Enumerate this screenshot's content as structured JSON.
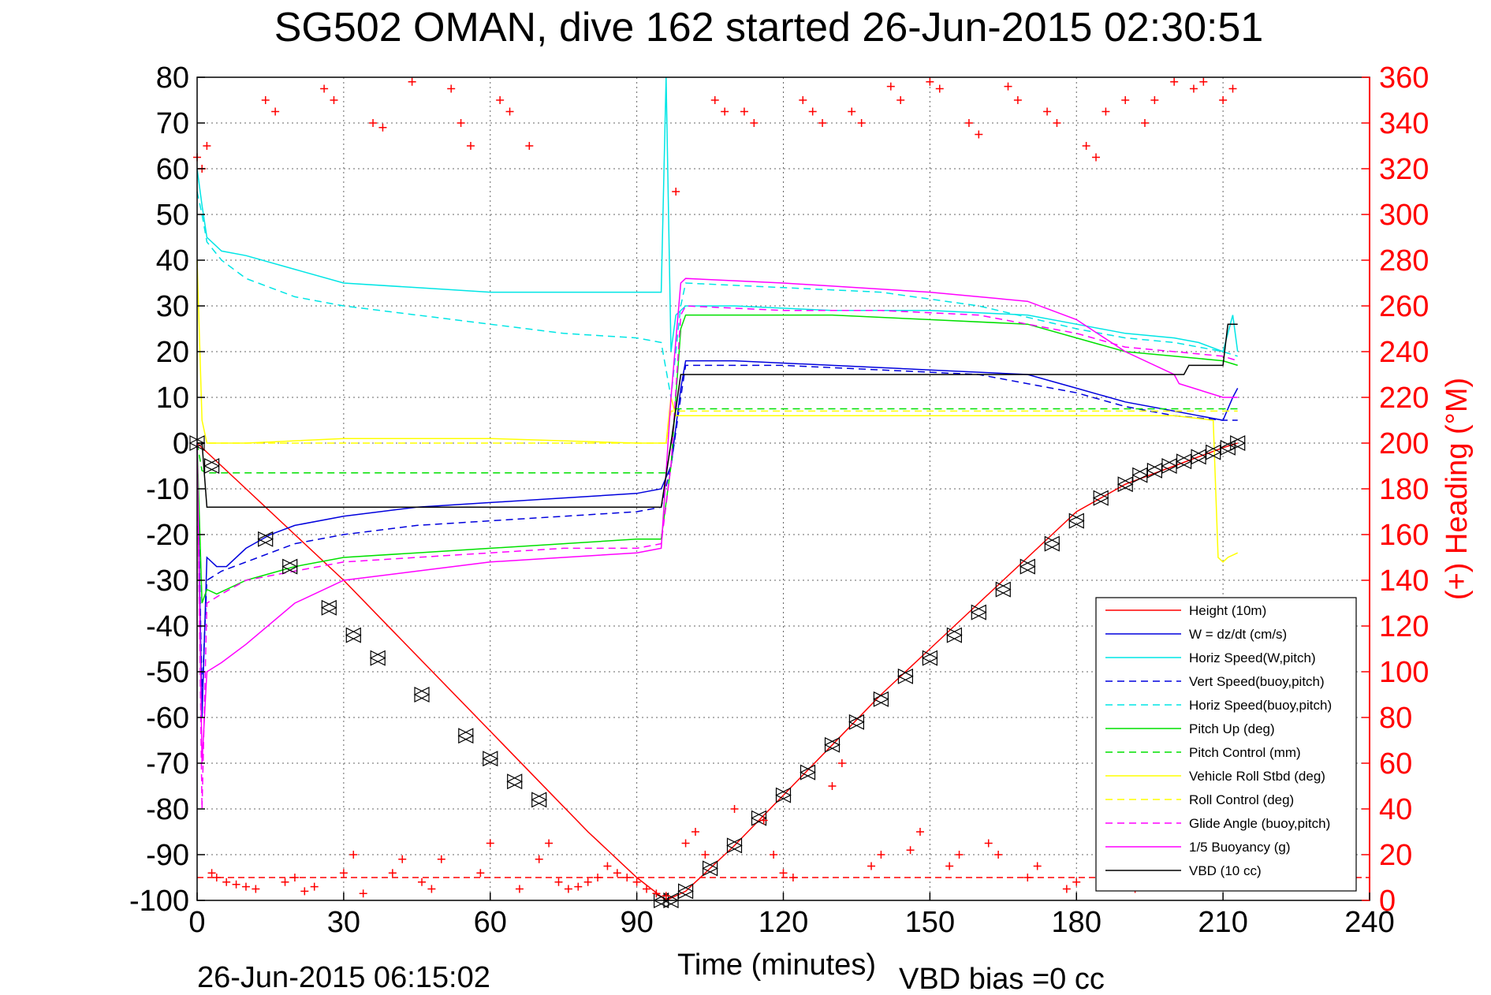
{
  "chart_data": {
    "type": "line",
    "title": "SG502 OMAN, dive 162 started 26-Jun-2015 02:30:51",
    "xlabel": "Time (minutes)",
    "ylabel": "",
    "y2label": "(+) Heading (°M)",
    "footer_left": "26-Jun-2015 06:15:02",
    "footer_right": "VBD bias =0 cc",
    "xlim": [
      0,
      240
    ],
    "ylim": [
      -100,
      80
    ],
    "y2lim": [
      0,
      360
    ],
    "xticks": [
      0,
      30,
      60,
      90,
      120,
      150,
      180,
      210,
      240
    ],
    "yticks": [
      80,
      70,
      60,
      50,
      40,
      30,
      20,
      10,
      0,
      -10,
      -20,
      -30,
      -40,
      -50,
      -60,
      -70,
      -80,
      -90,
      -100
    ],
    "y2ticks": [
      360,
      340,
      320,
      300,
      280,
      260,
      240,
      220,
      200,
      180,
      160,
      140,
      120,
      100,
      80,
      60,
      40,
      20,
      0
    ],
    "grid": true,
    "legend_position": "bottom-right",
    "series": [
      {
        "name": "Height (10m)",
        "color": "#ff0000",
        "dash": "solid",
        "x": [
          0,
          10,
          20,
          30,
          40,
          50,
          60,
          70,
          80,
          90,
          96,
          100,
          110,
          120,
          130,
          140,
          150,
          160,
          170,
          180,
          190,
          200,
          210,
          213
        ],
        "y": [
          0,
          -10,
          -20,
          -30,
          -41,
          -52,
          -63,
          -74,
          -85,
          -95,
          -100,
          -98,
          -88,
          -77,
          -66,
          -55,
          -45,
          -35,
          -25,
          -15,
          -9,
          -5,
          -1,
          0
        ]
      },
      {
        "name": "W = dz/dt (cm/s)",
        "color": "#0000dd",
        "dash": "solid",
        "x": [
          0,
          1,
          2,
          4,
          6,
          10,
          15,
          20,
          30,
          45,
          60,
          75,
          90,
          95,
          97,
          99,
          100,
          110,
          130,
          150,
          170,
          180,
          190,
          200,
          205,
          210,
          212,
          213
        ],
        "y": [
          0,
          -60,
          -25,
          -27,
          -27,
          -23,
          -20,
          -18,
          -16,
          -14,
          -13,
          -12,
          -11,
          -10,
          -5,
          12,
          18,
          18,
          17,
          16,
          15,
          12,
          9,
          7,
          6,
          5,
          10,
          12
        ]
      },
      {
        "name": "Horiz Speed(W,pitch)",
        "color": "#00e5e5",
        "dash": "solid",
        "x": [
          0,
          1,
          2,
          5,
          10,
          20,
          30,
          45,
          60,
          75,
          90,
          95,
          96,
          97,
          98,
          100,
          110,
          130,
          150,
          170,
          180,
          190,
          200,
          205,
          210,
          212,
          213
        ],
        "y": [
          60,
          52,
          45,
          42,
          41,
          38,
          35,
          34,
          33,
          33,
          33,
          33,
          80,
          20,
          28,
          30,
          30,
          29,
          29,
          28,
          26,
          24,
          23,
          22,
          20,
          28,
          20
        ]
      },
      {
        "name": "Vert Speed(buoy,pitch)",
        "color": "#0000dd",
        "dash": "dash",
        "x": [
          0,
          1,
          2,
          5,
          10,
          20,
          30,
          45,
          60,
          75,
          90,
          95,
          97,
          99,
          100,
          120,
          140,
          160,
          180,
          190,
          200,
          210,
          213
        ],
        "y": [
          0,
          -55,
          -30,
          -28,
          -26,
          -22,
          -20,
          -18,
          -17,
          -16,
          -15,
          -14,
          -5,
          10,
          17,
          17,
          16,
          15,
          11,
          8,
          6,
          5,
          5
        ]
      },
      {
        "name": "Horiz Speed(buoy,pitch)",
        "color": "#00e5e5",
        "dash": "dash",
        "x": [
          0,
          1,
          2,
          5,
          10,
          20,
          30,
          45,
          60,
          75,
          90,
          95,
          97,
          99,
          100,
          120,
          140,
          160,
          180,
          190,
          200,
          210,
          213
        ],
        "y": [
          55,
          50,
          44,
          40,
          36,
          32,
          30,
          28,
          26,
          24,
          23,
          22,
          10,
          30,
          35,
          34,
          33,
          30,
          25,
          23,
          22,
          20,
          19
        ]
      },
      {
        "name": "Pitch Up (deg)",
        "color": "#00e000",
        "dash": "solid",
        "x": [
          0,
          1,
          2,
          4,
          10,
          20,
          30,
          45,
          60,
          75,
          90,
          95,
          97,
          99,
          100,
          110,
          130,
          150,
          170,
          180,
          190,
          200,
          210,
          213
        ],
        "y": [
          0,
          -35,
          -32,
          -33,
          -30,
          -27,
          -25,
          -24,
          -23,
          -22,
          -21,
          -21,
          -5,
          25,
          28,
          28,
          28,
          27,
          26,
          23,
          20,
          19,
          18,
          17
        ]
      },
      {
        "name": "Pitch Control (mm)",
        "color": "#00e000",
        "dash": "dash",
        "x": [
          0,
          1,
          2,
          96,
          97,
          98,
          213
        ],
        "y": [
          0,
          -6,
          -6.5,
          -6.5,
          0,
          7.5,
          7.5
        ]
      },
      {
        "name": "Vehicle Roll Stbd (deg)",
        "color": "#ffff00",
        "dash": "solid",
        "x": [
          0,
          1,
          2,
          10,
          30,
          60,
          90,
          96,
          97,
          98,
          150,
          200,
          208,
          209,
          210,
          211,
          213
        ],
        "y": [
          40,
          5,
          0,
          0,
          1,
          1,
          0,
          0,
          10,
          6,
          6,
          6,
          5,
          -25,
          -26,
          -25,
          -24
        ]
      },
      {
        "name": "Roll Control (deg)",
        "color": "#ffff00",
        "dash": "dash",
        "x": [
          0,
          1,
          96,
          97,
          213
        ],
        "y": [
          0,
          0,
          0,
          7,
          7
        ]
      },
      {
        "name": "Glide Angle (buoy,pitch)",
        "color": "#ff00ff",
        "dash": "dash",
        "x": [
          0,
          1,
          2,
          5,
          10,
          20,
          30,
          45,
          60,
          75,
          90,
          95,
          97,
          99,
          100,
          120,
          140,
          160,
          180,
          190,
          200,
          210,
          213
        ],
        "y": [
          0,
          -80,
          -35,
          -33,
          -30,
          -28,
          -26,
          -25,
          -24,
          -23,
          -23,
          -22,
          -5,
          28,
          30,
          29,
          29,
          28,
          24,
          21,
          20,
          19,
          18
        ]
      },
      {
        "name": "1/5 Buoyancy (g)",
        "color": "#ff00ff",
        "dash": "solid",
        "x": [
          0,
          1,
          2,
          5,
          10,
          20,
          30,
          45,
          60,
          75,
          90,
          95,
          97,
          99,
          100,
          120,
          150,
          170,
          180,
          190,
          200,
          201,
          210,
          213
        ],
        "y": [
          0,
          -70,
          -50,
          -48,
          -44,
          -35,
          -30,
          -28,
          -26,
          -25,
          -24,
          -23,
          10,
          35,
          36,
          35,
          33,
          31,
          27,
          20,
          15,
          13,
          10,
          10
        ]
      },
      {
        "name": "VBD (10 cc)",
        "color": "#000000",
        "dash": "solid",
        "x": [
          0,
          1,
          2,
          90,
          95,
          97,
          99,
          100,
          193,
          194,
          202,
          203,
          210,
          211,
          213
        ],
        "y": [
          0,
          0,
          -14,
          -14,
          -14,
          0,
          15,
          15,
          15,
          15,
          15,
          17,
          17,
          26,
          26
        ]
      }
    ],
    "markers": {
      "name": "Height (10m)",
      "x": [
        0,
        3,
        14,
        19,
        27,
        32,
        37,
        46,
        55,
        60,
        65,
        70,
        95,
        97,
        100,
        105,
        110,
        115,
        120,
        125,
        130,
        135,
        140,
        145,
        150,
        155,
        160,
        165,
        170,
        175,
        180,
        185,
        190,
        193,
        196,
        199,
        202,
        205,
        208,
        211,
        213
      ],
      "y": [
        0,
        -5,
        -21,
        -27,
        -36,
        -42,
        -47,
        -55,
        -64,
        -69,
        -74,
        -78,
        -100,
        -100,
        -98,
        -93,
        -88,
        -82,
        -77,
        -72,
        -66,
        -61,
        -56,
        -51,
        -47,
        -42,
        -37,
        -32,
        -27,
        -22,
        -17,
        -12,
        -9,
        -7,
        -6,
        -5,
        -4,
        -3,
        -2,
        -1,
        0
      ]
    },
    "heading": {
      "name": "(+) Heading (°M)",
      "color": "#ff0000",
      "marker": "+",
      "x": [
        0,
        1,
        2,
        3,
        4,
        6,
        8,
        10,
        12,
        14,
        16,
        18,
        20,
        22,
        24,
        26,
        28,
        30,
        32,
        34,
        36,
        38,
        40,
        42,
        44,
        46,
        48,
        50,
        52,
        54,
        56,
        58,
        60,
        62,
        64,
        66,
        68,
        70,
        72,
        74,
        76,
        78,
        80,
        82,
        84,
        86,
        88,
        90,
        92,
        94,
        96,
        98,
        100,
        102,
        104,
        106,
        108,
        110,
        112,
        114,
        116,
        118,
        120,
        122,
        124,
        126,
        128,
        130,
        132,
        134,
        136,
        138,
        140,
        142,
        144,
        146,
        148,
        150,
        152,
        154,
        156,
        158,
        160,
        162,
        164,
        166,
        168,
        170,
        172,
        174,
        176,
        178,
        180,
        182,
        184,
        186,
        188,
        190,
        192,
        194,
        196,
        198,
        200,
        202,
        204,
        206,
        208,
        210,
        212,
        214
      ],
      "y": [
        325,
        320,
        330,
        12,
        10,
        8,
        7,
        6,
        5,
        350,
        345,
        8,
        10,
        4,
        6,
        355,
        350,
        12,
        20,
        3,
        340,
        338,
        12,
        18,
        358,
        8,
        5,
        18,
        355,
        340,
        330,
        12,
        25,
        350,
        345,
        5,
        330,
        18,
        25,
        8,
        5,
        6,
        8,
        10,
        15,
        12,
        10,
        8,
        5,
        3,
        2,
        310,
        25,
        30,
        20,
        350,
        345,
        40,
        345,
        340,
        35,
        20,
        12,
        10,
        350,
        345,
        340,
        50,
        60,
        345,
        340,
        15,
        20,
        356,
        350,
        22,
        30,
        358,
        355,
        15,
        20,
        340,
        335,
        25,
        20,
        356,
        350,
        10,
        15,
        345,
        340,
        5,
        8,
        330,
        325,
        345,
        10,
        350,
        5,
        340,
        350,
        20,
        358,
        10,
        355,
        358,
        15,
        350,
        355,
        8
      ]
    },
    "heading_reference": {
      "value": 10,
      "color": "#ff0000",
      "dash": "dash"
    }
  }
}
